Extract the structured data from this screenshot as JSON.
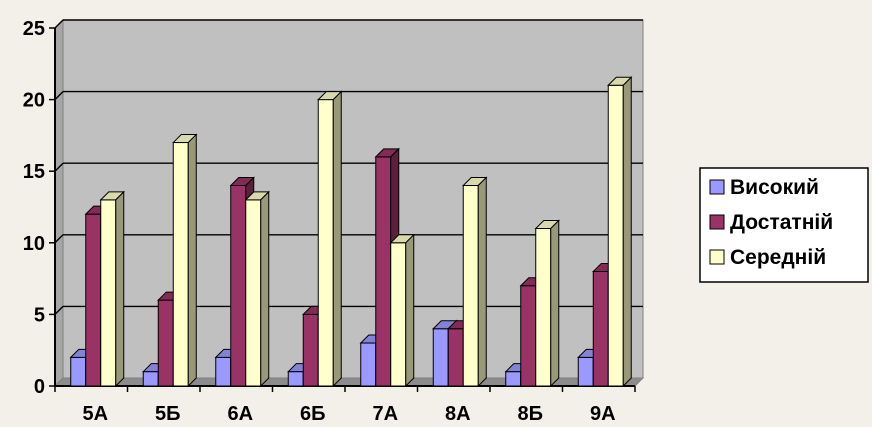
{
  "chart_data": {
    "type": "bar",
    "categories": [
      "5А",
      "5Б",
      "6А",
      "6Б",
      "7А",
      "8А",
      "8Б",
      "9А"
    ],
    "series": [
      {
        "name": "Високий",
        "values": [
          2,
          1,
          2,
          1,
          3,
          4,
          1,
          2
        ],
        "color": "#9999ff"
      },
      {
        "name": "Достатній",
        "values": [
          12,
          6,
          14,
          5,
          16,
          4,
          7,
          8
        ],
        "color": "#993366"
      },
      {
        "name": "Середній",
        "values": [
          13,
          17,
          13,
          20,
          10,
          14,
          11,
          21
        ],
        "color": "#ffffcc"
      }
    ],
    "ylim": [
      0,
      25
    ],
    "yticks": [
      "0",
      "5",
      "10",
      "15",
      "20",
      "25"
    ],
    "title": "",
    "xlabel": "",
    "ylabel": "",
    "grid": true,
    "legend_position": "right",
    "plot_wall_color": "#c0c0c0",
    "background_color": "#f3f0ea"
  }
}
